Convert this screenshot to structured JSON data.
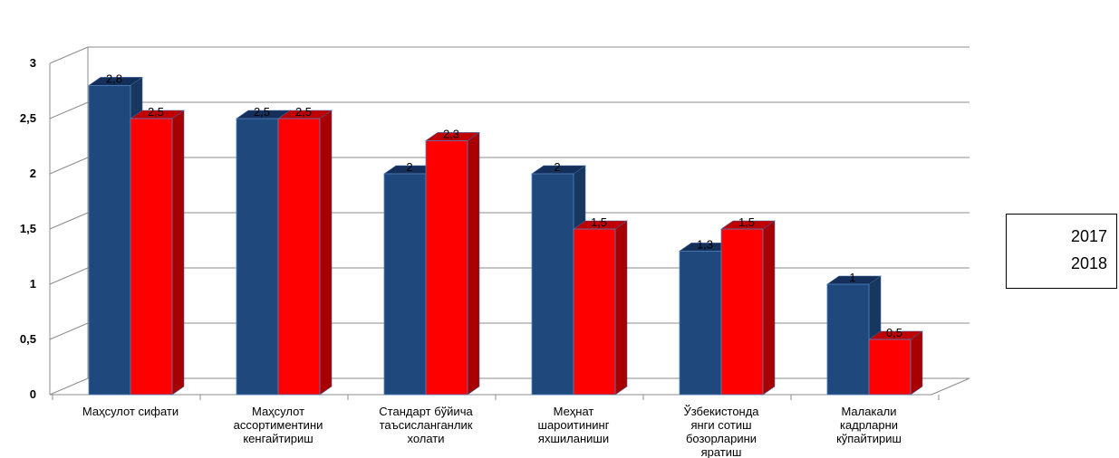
{
  "chart_data": {
    "type": "bar",
    "categories": [
      [
        "Маҳсулот сифати"
      ],
      [
        "Маҳсулот",
        "ассортиментини",
        "кенгайтириш"
      ],
      [
        "Стандарт бўйича",
        "таъсисланганлик",
        "холати"
      ],
      [
        "Меҳнат",
        "шароитининг",
        "яхшиланиши"
      ],
      [
        "Ўзбекистонда",
        "янги сотиш",
        "бозорларини",
        "яратиш"
      ],
      [
        "Малакали",
        "кадрларни",
        "кўпайтириш"
      ]
    ],
    "series": [
      {
        "name": "2017",
        "values": [
          2.8,
          2.5,
          2,
          2,
          1.3,
          1
        ],
        "color": "#1F497D",
        "side_color": "#17375E",
        "top_color": "#14305A"
      },
      {
        "name": "2018",
        "values": [
          2.5,
          2.5,
          2.3,
          1.5,
          1.5,
          0.5
        ],
        "color": "#FF0000",
        "side_color": "#A80000",
        "top_color": "#C00000"
      }
    ],
    "data_labels": [
      [
        "2,8",
        "2,5",
        "2",
        "2",
        "1,3",
        "1"
      ],
      [
        "2,5",
        "2,5",
        "2,3",
        "1,5",
        "1,5",
        "0,5"
      ]
    ],
    "yticks": [
      0,
      0.5,
      1,
      1.5,
      2,
      2.5,
      3
    ],
    "ytick_labels": [
      "0",
      "0,5",
      "1",
      "1,5",
      "2",
      "2,5",
      "3"
    ],
    "ylim": [
      0,
      3
    ],
    "grid": true,
    "legend_position": "right"
  }
}
